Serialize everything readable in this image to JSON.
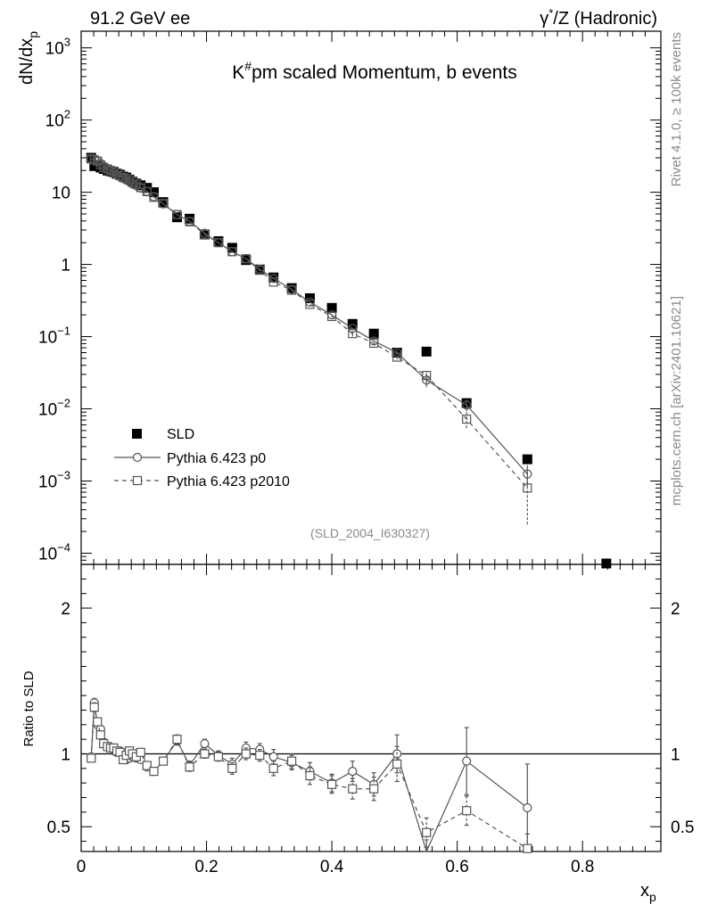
{
  "header": {
    "left": "91.2 GeV ee",
    "right_prefix": "γ",
    "right_sup": "*",
    "right_suffix": "/Z (Hadronic)"
  },
  "side_text": {
    "rivet": "Rivet 4.1.0, ≥ 100k events",
    "mcplots": "mcplots.cern.ch [arXiv:2401.10621]"
  },
  "chart_data": [
    {
      "type": "scatter",
      "title_main": "K",
      "title_sup": "#",
      "title_rest": "pm scaled Momentum, b events",
      "analysis_id": "(SLD_2004_I630327)",
      "ylabel_main": "dN/dx",
      "ylabel_sub": "p",
      "yscale": "log",
      "ylim": [
        7e-05,
        1700
      ],
      "xlim": [
        0,
        0.925
      ],
      "ytick_labels": [
        {
          "value": 1000,
          "base": "10",
          "exp": "3"
        },
        {
          "value": 100,
          "base": "10",
          "exp": "2"
        },
        {
          "value": 10,
          "base": "10",
          "exp": ""
        },
        {
          "value": 1,
          "base": "1",
          "exp": ""
        },
        {
          "value": 0.1,
          "base": "10",
          "exp": "−1"
        },
        {
          "value": 0.01,
          "base": "10",
          "exp": "−2"
        },
        {
          "value": 0.001,
          "base": "10",
          "exp": "−3"
        },
        {
          "value": 0.0001,
          "base": "10",
          "exp": "−4"
        }
      ],
      "legend": [
        "SLD",
        "Pythia 6.423 p0",
        "Pythia 6.423 p2010"
      ],
      "series": [
        {
          "name": "SLD",
          "style": "filled-square",
          "x": [
            0.016,
            0.021,
            0.026,
            0.031,
            0.036,
            0.042,
            0.047,
            0.052,
            0.057,
            0.062,
            0.067,
            0.072,
            0.077,
            0.082,
            0.088,
            0.095,
            0.105,
            0.116,
            0.131,
            0.153,
            0.173,
            0.197,
            0.219,
            0.241,
            0.263,
            0.285,
            0.307,
            0.336,
            0.365,
            0.4,
            0.433,
            0.467,
            0.504,
            0.551,
            0.615,
            0.712,
            0.838
          ],
          "y": [
            30,
            23,
            23.5,
            22,
            21,
            20,
            19.5,
            19,
            18,
            17.5,
            16.5,
            16,
            15,
            14,
            13.2,
            12.5,
            11.5,
            10,
            7.3,
            4.5,
            4.3,
            2.6,
            2.1,
            1.7,
            1.15,
            0.85,
            0.66,
            0.47,
            0.34,
            0.25,
            0.15,
            0.11,
            0.06,
            0.062,
            0.012,
            0.002,
            7e-05
          ]
        },
        {
          "name": "Pythia 6.423 p0",
          "style": "open-circle-solid",
          "x": [
            0.016,
            0.021,
            0.026,
            0.031,
            0.036,
            0.042,
            0.047,
            0.052,
            0.057,
            0.062,
            0.067,
            0.072,
            0.077,
            0.082,
            0.088,
            0.095,
            0.105,
            0.116,
            0.131,
            0.153,
            0.173,
            0.197,
            0.219,
            0.241,
            0.263,
            0.285,
            0.307,
            0.336,
            0.365,
            0.4,
            0.433,
            0.467,
            0.504,
            0.551,
            0.615,
            0.712
          ],
          "y": [
            29,
            29,
            27,
            25,
            23,
            21,
            20,
            19,
            17.5,
            16.5,
            15.5,
            14.8,
            14,
            13,
            12.3,
            11.4,
            10.3,
            8.7,
            6.9,
            4.9,
            3.95,
            2.7,
            2.0,
            1.5,
            1.2,
            0.86,
            0.64,
            0.45,
            0.3,
            0.2,
            0.13,
            0.087,
            0.06,
            0.025,
            0.0113,
            0.00125
          ],
          "err": [
            0,
            0,
            0,
            0,
            0,
            0,
            0,
            0,
            0,
            0,
            0,
            0,
            0,
            0,
            0,
            0,
            0,
            0,
            0,
            0,
            0,
            0,
            0,
            0,
            0,
            0,
            0,
            0,
            0,
            0,
            0,
            0,
            0.005,
            0.005,
            0.002,
            0.0004
          ]
        },
        {
          "name": "Pythia 6.423 p2010",
          "style": "open-square-dashed",
          "x": [
            0.016,
            0.021,
            0.026,
            0.031,
            0.036,
            0.042,
            0.047,
            0.052,
            0.057,
            0.062,
            0.067,
            0.072,
            0.077,
            0.082,
            0.088,
            0.095,
            0.105,
            0.116,
            0.131,
            0.153,
            0.173,
            0.197,
            0.219,
            0.241,
            0.263,
            0.285,
            0.307,
            0.336,
            0.365,
            0.4,
            0.433,
            0.467,
            0.504,
            0.551,
            0.615,
            0.712
          ],
          "y": [
            29,
            28,
            27,
            24,
            22,
            21,
            20,
            19.5,
            18.5,
            17,
            16,
            15.5,
            14.8,
            13.8,
            12.9,
            11.6,
            10.2,
            8.5,
            7.0,
            4.9,
            3.9,
            2.6,
            2.0,
            1.5,
            1.2,
            0.83,
            0.57,
            0.44,
            0.28,
            0.19,
            0.11,
            0.081,
            0.052,
            0.029,
            0.0072,
            0.0008
          ],
          "err": [
            0,
            0,
            0,
            0,
            0,
            0,
            0,
            0,
            0,
            0,
            0,
            0,
            0,
            0,
            0,
            0,
            0,
            0,
            0,
            0,
            0,
            0,
            0,
            0,
            0,
            0,
            0,
            0,
            0,
            0,
            0.01,
            0.006,
            0.004,
            0.004,
            0.0018,
            0.00055
          ]
        }
      ]
    },
    {
      "type": "line",
      "ylabel": "Ratio to SLD",
      "xlabel_main": "x",
      "xlabel_sub": "p",
      "ylim": [
        0.33,
        2.3
      ],
      "xlim": [
        0,
        0.925
      ],
      "reference_line": 1,
      "ytick_labels": [
        "0.5",
        "1",
        "2"
      ],
      "xtick_labels": [
        "0",
        "0.2",
        "0.4",
        "0.6",
        "0.8"
      ],
      "series": [
        {
          "name": "Pythia 6.423 p0",
          "style": "open-circle-solid",
          "x": [
            0.016,
            0.021,
            0.026,
            0.031,
            0.036,
            0.042,
            0.047,
            0.052,
            0.057,
            0.062,
            0.067,
            0.072,
            0.077,
            0.082,
            0.088,
            0.095,
            0.105,
            0.116,
            0.131,
            0.153,
            0.173,
            0.197,
            0.219,
            0.241,
            0.263,
            0.285,
            0.307,
            0.336,
            0.365,
            0.4,
            0.433,
            0.467,
            0.504,
            0.551,
            0.615,
            0.712
          ],
          "y": [
            0.98,
            1.35,
            1.2,
            1.17,
            1.08,
            1.05,
            1.04,
            1.03,
            1.01,
            1.02,
            0.97,
            0.96,
            0.97,
            0.98,
            0.97,
            0.96,
            0.91,
            0.88,
            0.95,
            1.09,
            0.92,
            1.07,
            0.99,
            0.93,
            1.04,
            1.03,
            0.98,
            0.94,
            0.88,
            0.8,
            0.88,
            0.79,
            1.0,
            0.31,
            0.95,
            0.63
          ],
          "err": [
            0.02,
            0.03,
            0.02,
            0.02,
            0.02,
            0.02,
            0.02,
            0.02,
            0.02,
            0.02,
            0.02,
            0.02,
            0.02,
            0.02,
            0.02,
            0.02,
            0.02,
            0.02,
            0.02,
            0.03,
            0.03,
            0.03,
            0.03,
            0.04,
            0.04,
            0.04,
            0.05,
            0.05,
            0.06,
            0.06,
            0.07,
            0.08,
            0.13,
            0.1,
            0.23,
            0.3
          ]
        },
        {
          "name": "Pythia 6.423 p2010",
          "style": "open-square-dashed",
          "x": [
            0.016,
            0.021,
            0.026,
            0.031,
            0.036,
            0.042,
            0.047,
            0.052,
            0.057,
            0.062,
            0.067,
            0.072,
            0.077,
            0.082,
            0.088,
            0.095,
            0.105,
            0.116,
            0.131,
            0.153,
            0.173,
            0.197,
            0.219,
            0.241,
            0.263,
            0.285,
            0.307,
            0.336,
            0.365,
            0.4,
            0.433,
            0.467,
            0.504,
            0.551,
            0.615,
            0.712
          ],
          "y": [
            0.97,
            1.32,
            1.22,
            1.13,
            1.07,
            1.05,
            1.04,
            1.04,
            1.02,
            1.01,
            0.96,
            0.99,
            1.02,
            1.0,
            0.98,
            1.01,
            0.92,
            0.88,
            0.95,
            1.1,
            0.91,
            1.0,
            0.98,
            0.9,
            1.0,
            0.99,
            0.9,
            0.95,
            0.85,
            0.79,
            0.76,
            0.76,
            0.93,
            0.46,
            0.61,
            0.35
          ],
          "err": [
            0.02,
            0.03,
            0.02,
            0.02,
            0.02,
            0.02,
            0.02,
            0.02,
            0.02,
            0.02,
            0.02,
            0.02,
            0.02,
            0.02,
            0.02,
            0.02,
            0.02,
            0.02,
            0.02,
            0.03,
            0.03,
            0.03,
            0.03,
            0.04,
            0.04,
            0.04,
            0.05,
            0.05,
            0.06,
            0.06,
            0.07,
            0.08,
            0.12,
            0.1,
            0.1,
            0.1
          ]
        }
      ]
    }
  ]
}
